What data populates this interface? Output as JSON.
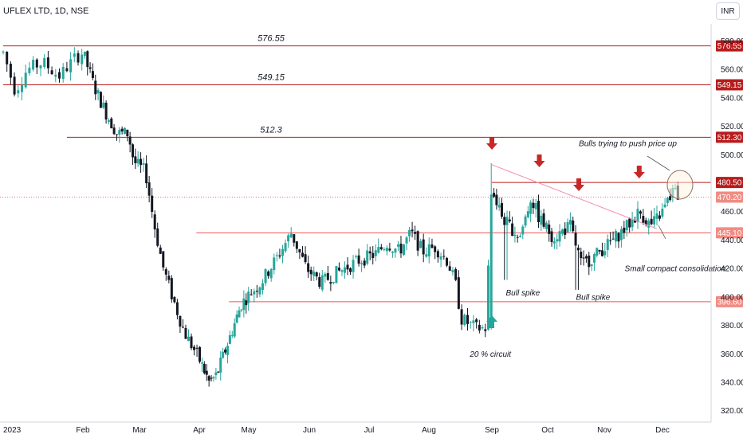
{
  "header": {
    "title": "UFLEX LTD, 1D, NSE",
    "currency": "INR"
  },
  "colors": {
    "up": "#26a69a",
    "down": "#131722",
    "level": "#b71c1c",
    "level_light": "#ef5350",
    "arrow_down": "#c62828",
    "arrow_up": "#26a69a",
    "trendline": "#f48fb1",
    "current": "#e57373"
  },
  "chart_data": {
    "type": "candlestick",
    "title": "UFLEX LTD, 1D, NSE",
    "y_range": [
      312,
      592
    ],
    "y_ticks": [
      "580.00",
      "560.00",
      "540.00",
      "520.00",
      "500.00",
      "460.00",
      "440.00",
      "420.00",
      "400.00",
      "380.00",
      "360.00",
      "340.00",
      "320.00"
    ],
    "x_labels": [
      "2023",
      "Feb",
      "Mar",
      "Apr",
      "May",
      "Jun",
      "Jul",
      "Aug",
      "Sep",
      "Oct",
      "Nov",
      "Dec"
    ],
    "levels": [
      {
        "value": 576.55,
        "label": "576.55",
        "tag": "576.55",
        "start_month": 0.0
      },
      {
        "value": 549.15,
        "label": "549.15",
        "tag": "549.15",
        "start_month": 0.0
      },
      {
        "value": 512.3,
        "label": "512.3",
        "tag": "512.30",
        "start_month": 0.8
      },
      {
        "value": 480.5,
        "tag": "480.50",
        "start_month": 8.0
      },
      {
        "value": 445.1,
        "tag": "445.10",
        "start_month": 2.95,
        "light": true
      },
      {
        "value": 396.6,
        "tag": "396.60",
        "start_month": 3.6,
        "light": true
      }
    ],
    "current_price": {
      "value": 470.2,
      "tag": "470.20"
    },
    "trendline": [
      {
        "month": 8.0,
        "value": 493
      },
      {
        "month": 10.9,
        "value": 448
      }
    ],
    "ohlc_path": [
      {
        "month": 0.0,
        "price": 572
      },
      {
        "month": 0.15,
        "price": 545
      },
      {
        "month": 0.3,
        "price": 560
      },
      {
        "month": 0.5,
        "price": 565
      },
      {
        "month": 0.7,
        "price": 555
      },
      {
        "month": 0.9,
        "price": 568
      },
      {
        "month": 1.0,
        "price": 572
      },
      {
        "month": 1.2,
        "price": 548
      },
      {
        "month": 1.4,
        "price": 530
      },
      {
        "month": 1.6,
        "price": 515
      },
      {
        "month": 1.8,
        "price": 515
      },
      {
        "month": 1.9,
        "price": 495
      },
      {
        "month": 2.1,
        "price": 488
      },
      {
        "month": 2.25,
        "price": 450
      },
      {
        "month": 2.4,
        "price": 420
      },
      {
        "month": 2.55,
        "price": 400
      },
      {
        "month": 2.75,
        "price": 375
      },
      {
        "month": 2.95,
        "price": 360
      },
      {
        "month": 3.2,
        "price": 340
      },
      {
        "month": 3.35,
        "price": 345
      },
      {
        "month": 3.6,
        "price": 370
      },
      {
        "month": 3.85,
        "price": 395
      },
      {
        "month": 4.2,
        "price": 410
      },
      {
        "month": 4.5,
        "price": 430
      },
      {
        "month": 4.7,
        "price": 445
      },
      {
        "month": 4.95,
        "price": 420
      },
      {
        "month": 5.2,
        "price": 410
      },
      {
        "month": 5.5,
        "price": 418
      },
      {
        "month": 5.8,
        "price": 425
      },
      {
        "month": 6.1,
        "price": 430
      },
      {
        "month": 6.3,
        "price": 438
      },
      {
        "month": 6.5,
        "price": 432
      },
      {
        "month": 6.7,
        "price": 445
      },
      {
        "month": 6.9,
        "price": 432
      },
      {
        "month": 7.1,
        "price": 435
      },
      {
        "month": 7.3,
        "price": 425
      },
      {
        "month": 7.45,
        "price": 405
      },
      {
        "month": 7.5,
        "price": 385
      },
      {
        "month": 7.75,
        "price": 378
      },
      {
        "month": 7.9,
        "price": 378
      },
      {
        "month": 8.0,
        "price": 475
      },
      {
        "month": 8.2,
        "price": 455
      },
      {
        "month": 8.5,
        "price": 442
      },
      {
        "month": 8.7,
        "price": 470
      },
      {
        "month": 8.85,
        "price": 455
      },
      {
        "month": 9.1,
        "price": 442
      },
      {
        "month": 9.4,
        "price": 450
      },
      {
        "month": 9.6,
        "price": 422
      },
      {
        "month": 9.8,
        "price": 428
      },
      {
        "month": 10.1,
        "price": 438
      },
      {
        "month": 10.4,
        "price": 450
      },
      {
        "month": 10.6,
        "price": 460
      },
      {
        "month": 10.8,
        "price": 450
      },
      {
        "month": 11.0,
        "price": 460
      },
      {
        "month": 11.2,
        "price": 475
      },
      {
        "month": 11.3,
        "price": 470
      }
    ],
    "arrows": [
      {
        "dir": "down",
        "month": 8.0
      },
      {
        "dir": "down",
        "month": 8.85
      },
      {
        "dir": "down",
        "month": 9.55
      },
      {
        "dir": "down",
        "month": 10.6
      },
      {
        "dir": "up",
        "month": 8.0
      }
    ],
    "annotations": [
      {
        "text": "Bulls trying to push price up",
        "month": 9.55,
        "value": 506
      },
      {
        "text": "Small compact consolidation",
        "month": 10.35,
        "value": 418
      },
      {
        "text": "Bull spike",
        "month": 8.25,
        "value": 401
      },
      {
        "text": "Bull spike",
        "month": 9.5,
        "value": 398
      },
      {
        "text": "20 % circuit",
        "month": 7.65,
        "value": 358
      }
    ]
  }
}
